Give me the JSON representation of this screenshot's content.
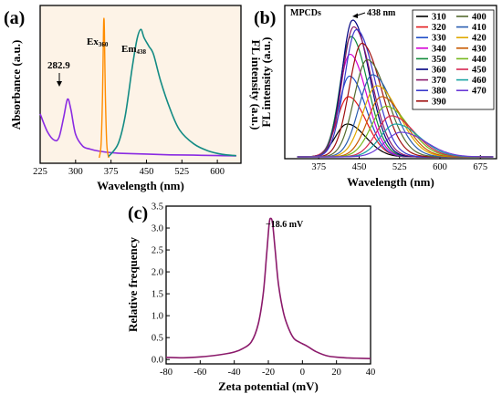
{
  "panels": {
    "a": {
      "tag": "(a)",
      "ylabel_left": "Absorbance (a.u.)",
      "ylabel_right": "FL intensity (a.u.)",
      "xlabel": "Wavelength (nm)",
      "peak_annotation": "282.9",
      "ex_label": "Ex",
      "ex_sub": "360",
      "em_label": "Em",
      "em_sub": "438",
      "bg_color": "#fdf3e7",
      "colors": {
        "absorbance": "#8a2be2",
        "excitation": "#ff8c00",
        "emission": "#138b84"
      }
    },
    "b": {
      "tag": "(b)",
      "ylabel": "FL intensity (a.u.)",
      "xlabel": "Wavelength (nm)",
      "sample_label": "MPCDs",
      "peak_annotation": "438 nm",
      "peak_color": "#138b84"
    },
    "c": {
      "tag": "(c)",
      "ylabel": "Relative frequency",
      "xlabel": "Zeta potential (mV)",
      "annotation": "−18.6 mV",
      "color": "#8b1a6b"
    }
  },
  "chart_data": [
    {
      "type": "line",
      "panel": "a",
      "xlabel": "Wavelength (nm)",
      "ylabel": "Absorbance (a.u.)",
      "ylabel_right": "FL intensity (a.u.)",
      "xlim": [
        225,
        650
      ],
      "xticks": [
        225,
        300,
        375,
        450,
        525,
        600
      ],
      "grid": false,
      "series": [
        {
          "name": "Absorbance",
          "x": [
            225,
            240,
            255,
            265,
            275,
            283,
            290,
            300,
            315,
            330,
            350,
            375,
            400,
            450,
            500,
            550,
            600,
            640
          ],
          "y": [
            0.3,
            0.18,
            0.12,
            0.14,
            0.28,
            0.4,
            0.33,
            0.16,
            0.08,
            0.06,
            0.045,
            0.035,
            0.03,
            0.025,
            0.02,
            0.018,
            0.015,
            0.013
          ]
        },
        {
          "name": "Ex360",
          "x": [
            350,
            354,
            357,
            359,
            360,
            361,
            363,
            366,
            370
          ],
          "y": [
            0.0,
            0.1,
            0.45,
            0.9,
            1.0,
            0.9,
            0.45,
            0.1,
            0.0
          ]
        },
        {
          "name": "Em438",
          "x": [
            370,
            390,
            405,
            420,
            430,
            438,
            445,
            455,
            465,
            480,
            500,
            520,
            550,
            580,
            610,
            640
          ],
          "y": [
            0.01,
            0.1,
            0.3,
            0.65,
            0.85,
            0.92,
            0.86,
            0.8,
            0.74,
            0.55,
            0.35,
            0.2,
            0.1,
            0.05,
            0.025,
            0.015
          ]
        }
      ]
    },
    {
      "type": "line",
      "panel": "b",
      "xlabel": "Wavelength (nm)",
      "ylabel": "FL intensity (a.u.)",
      "xlim": [
        312,
        705
      ],
      "xticks": [
        375,
        450,
        525,
        600,
        675
      ],
      "grid": false,
      "legend_position": "top-right",
      "series": [
        {
          "name": "310",
          "color": "#000000",
          "peak": 428,
          "height": 0.24,
          "width": 42
        },
        {
          "name": "320",
          "color": "#e31a1c",
          "peak": 430,
          "height": 0.44,
          "width": 40
        },
        {
          "name": "330",
          "color": "#1f4ec8",
          "peak": 432,
          "height": 0.59,
          "width": 38
        },
        {
          "name": "340",
          "color": "#d400d4",
          "peak": 433,
          "height": 0.75,
          "width": 38
        },
        {
          "name": "350",
          "color": "#0f8a3a",
          "peak": 435,
          "height": 0.88,
          "width": 38
        },
        {
          "name": "360",
          "color": "#000080",
          "peak": 438,
          "height": 1.0,
          "width": 38
        },
        {
          "name": "370",
          "color": "#8b1a6b",
          "peak": 440,
          "height": 0.95,
          "width": 40
        },
        {
          "name": "380",
          "color": "#3a3acc",
          "peak": 445,
          "height": 0.93,
          "width": 42
        },
        {
          "name": "390",
          "color": "#a01010",
          "peak": 455,
          "height": 0.83,
          "width": 44
        },
        {
          "name": "400",
          "color": "#556b2f",
          "peak": 465,
          "height": 0.71,
          "width": 46
        },
        {
          "name": "410",
          "color": "#2a5db0",
          "peak": 475,
          "height": 0.6,
          "width": 48
        },
        {
          "name": "420",
          "color": "#e0a800",
          "peak": 483,
          "height": 0.52,
          "width": 50
        },
        {
          "name": "430",
          "color": "#c85a00",
          "peak": 492,
          "height": 0.44,
          "width": 50
        },
        {
          "name": "440",
          "color": "#76b81c",
          "peak": 500,
          "height": 0.37,
          "width": 52
        },
        {
          "name": "450",
          "color": "#d6244f",
          "peak": 510,
          "height": 0.3,
          "width": 52
        },
        {
          "name": "460",
          "color": "#1aa3a3",
          "peak": 518,
          "height": 0.24,
          "width": 54
        },
        {
          "name": "470",
          "color": "#6a3ad6",
          "peak": 528,
          "height": 0.18,
          "width": 56
        }
      ]
    },
    {
      "type": "line",
      "panel": "c",
      "xlabel": "Zeta potential (mV)",
      "ylabel": "Relative frequency",
      "xlim": [
        -80,
        40
      ],
      "ylim": [
        -0.1,
        3.5
      ],
      "xticks": [
        -80,
        -60,
        -40,
        -20,
        0,
        20,
        40
      ],
      "yticks": [
        0.0,
        0.5,
        1.0,
        1.5,
        2.0,
        2.5,
        3.0,
        3.5
      ],
      "grid": false,
      "series": [
        {
          "name": "Zeta",
          "x": [
            -80,
            -70,
            -60,
            -50,
            -40,
            -35,
            -30,
            -26,
            -23,
            -21,
            -19.5,
            -18.6,
            -17.5,
            -16,
            -14,
            -11,
            -8,
            -5,
            -2,
            0,
            3,
            8,
            15,
            25,
            32,
            40
          ],
          "y": [
            0.05,
            0.04,
            0.06,
            0.1,
            0.17,
            0.25,
            0.4,
            0.8,
            1.5,
            2.4,
            3.1,
            3.22,
            3.1,
            2.5,
            1.7,
            1.05,
            0.7,
            0.48,
            0.4,
            0.36,
            0.3,
            0.18,
            0.08,
            0.04,
            0.03,
            0.02
          ]
        }
      ]
    }
  ]
}
